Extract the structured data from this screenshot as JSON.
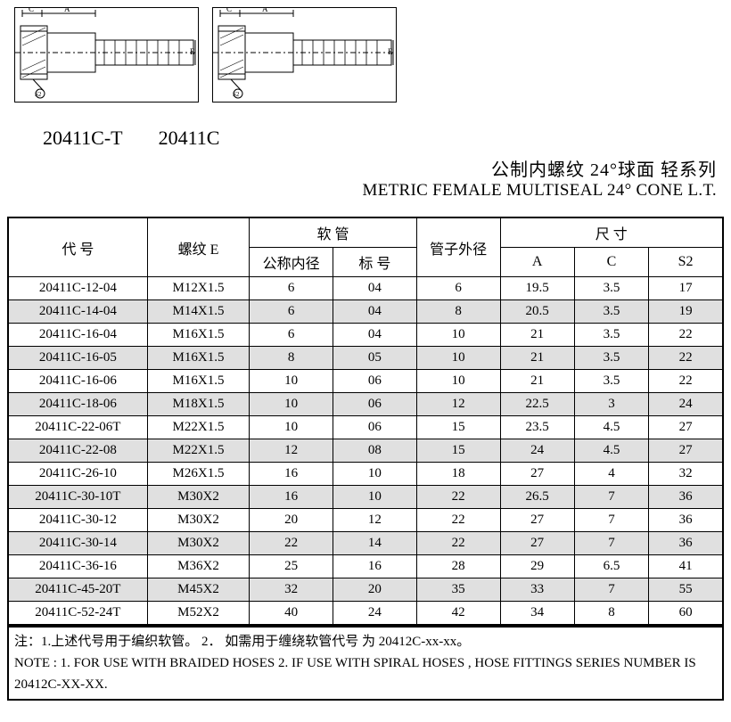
{
  "diagrams": {
    "label1": "20411C-T",
    "label2": "20411C"
  },
  "titles": {
    "cn": "公制内螺纹 24°球面  轻系列",
    "en": "METRIC FEMALE MULTISEAL 24° CONE L.T."
  },
  "table": {
    "headers": {
      "code": "代    号",
      "thread": "螺纹  E",
      "hose": "软    管",
      "hose_id": "公称内径",
      "hose_no": "标    号",
      "tube_od": "管子外径",
      "dim": "尺    寸",
      "A": "A",
      "C": "C",
      "S2": "S2"
    },
    "rows": [
      {
        "code": "20411C-12-04",
        "thread": "M12X1.5",
        "hose_id": "6",
        "hose_no": "04",
        "tube_od": "6",
        "A": "19.5",
        "C": "3.5",
        "S2": "17",
        "stripe": false
      },
      {
        "code": "20411C-14-04",
        "thread": "M14X1.5",
        "hose_id": "6",
        "hose_no": "04",
        "tube_od": "8",
        "A": "20.5",
        "C": "3.5",
        "S2": "19",
        "stripe": true
      },
      {
        "code": "20411C-16-04",
        "thread": "M16X1.5",
        "hose_id": "6",
        "hose_no": "04",
        "tube_od": "10",
        "A": "21",
        "C": "3.5",
        "S2": "22",
        "stripe": false
      },
      {
        "code": "20411C-16-05",
        "thread": "M16X1.5",
        "hose_id": "8",
        "hose_no": "05",
        "tube_od": "10",
        "A": "21",
        "C": "3.5",
        "S2": "22",
        "stripe": true
      },
      {
        "code": "20411C-16-06",
        "thread": "M16X1.5",
        "hose_id": "10",
        "hose_no": "06",
        "tube_od": "10",
        "A": "21",
        "C": "3.5",
        "S2": "22",
        "stripe": false
      },
      {
        "code": "20411C-18-06",
        "thread": "M18X1.5",
        "hose_id": "10",
        "hose_no": "06",
        "tube_od": "12",
        "A": "22.5",
        "C": "3",
        "S2": "24",
        "stripe": true
      },
      {
        "code": "20411C-22-06T",
        "thread": "M22X1.5",
        "hose_id": "10",
        "hose_no": "06",
        "tube_od": "15",
        "A": "23.5",
        "C": "4.5",
        "S2": "27",
        "stripe": false
      },
      {
        "code": "20411C-22-08",
        "thread": "M22X1.5",
        "hose_id": "12",
        "hose_no": "08",
        "tube_od": "15",
        "A": "24",
        "C": "4.5",
        "S2": "27",
        "stripe": true
      },
      {
        "code": "20411C-26-10",
        "thread": "M26X1.5",
        "hose_id": "16",
        "hose_no": "10",
        "tube_od": "18",
        "A": "27",
        "C": "4",
        "S2": "32",
        "stripe": false
      },
      {
        "code": "20411C-30-10T",
        "thread": "M30X2",
        "hose_id": "16",
        "hose_no": "10",
        "tube_od": "22",
        "A": "26.5",
        "C": "7",
        "S2": "36",
        "stripe": true
      },
      {
        "code": "20411C-30-12",
        "thread": "M30X2",
        "hose_id": "20",
        "hose_no": "12",
        "tube_od": "22",
        "A": "27",
        "C": "7",
        "S2": "36",
        "stripe": false
      },
      {
        "code": "20411C-30-14",
        "thread": "M30X2",
        "hose_id": "22",
        "hose_no": "14",
        "tube_od": "22",
        "A": "27",
        "C": "7",
        "S2": "36",
        "stripe": true
      },
      {
        "code": "20411C-36-16",
        "thread": "M36X2",
        "hose_id": "25",
        "hose_no": "16",
        "tube_od": "28",
        "A": "29",
        "C": "6.5",
        "S2": "41",
        "stripe": false
      },
      {
        "code": "20411C-45-20T",
        "thread": "M45X2",
        "hose_id": "32",
        "hose_no": "20",
        "tube_od": "35",
        "A": "33",
        "C": "7",
        "S2": "55",
        "stripe": true
      },
      {
        "code": "20411C-52-24T",
        "thread": "M52X2",
        "hose_id": "40",
        "hose_no": "24",
        "tube_od": "42",
        "A": "34",
        "C": "8",
        "S2": "60",
        "stripe": false
      }
    ]
  },
  "notes": {
    "cn": "注：1.上述代号用于编织软管。   2．  如需用于缠绕软管代号       为 20412C-xx-xx。",
    "en": "NOTE : 1. FOR USE WITH BRAIDED HOSES    2. IF USE WITH SPIRAL HOSES , HOSE FITTINGS SERIES NUMBER IS 20412C-XX-XX."
  }
}
